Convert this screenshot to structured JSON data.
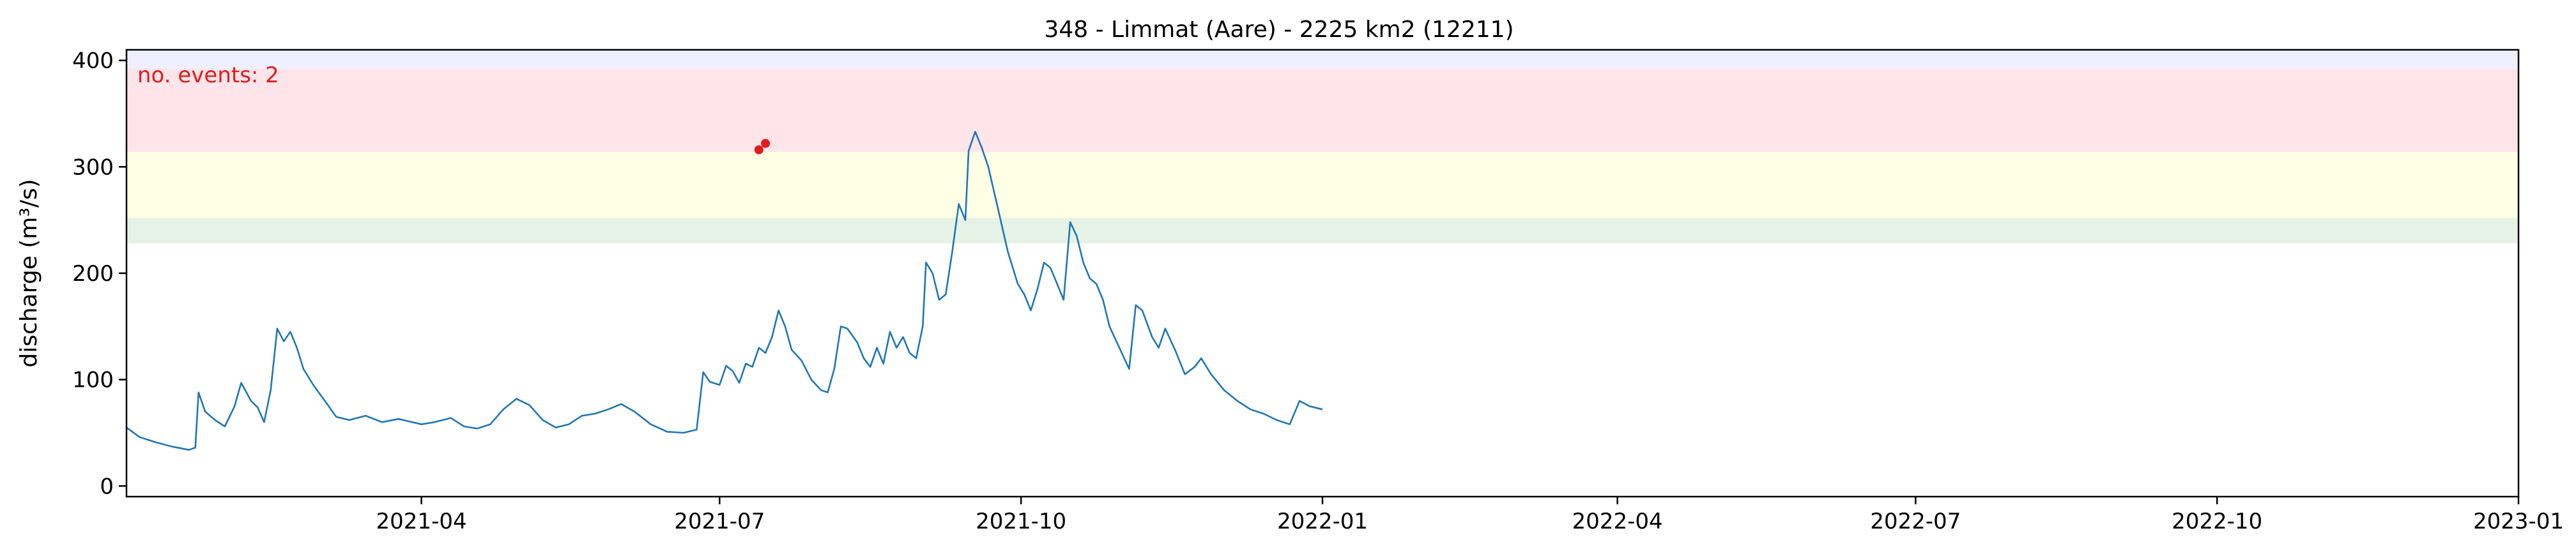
{
  "chart_data": {
    "type": "line",
    "title": "348 - Limmat (Aare) - 2225 km2 (12211)",
    "xlabel": "",
    "ylabel": "discharge (m³/s)",
    "xlim": [
      "2021-01-01",
      "2023-01-01"
    ],
    "ylim": [
      -10,
      410
    ],
    "x_ticks": [
      "2021-04",
      "2021-07",
      "2021-10",
      "2022-01",
      "2022-04",
      "2022-07",
      "2022-10",
      "2023-01"
    ],
    "y_ticks": [
      0,
      100,
      200,
      300,
      400
    ],
    "grid": false,
    "threshold_bands": [
      {
        "from": 228,
        "to": 252,
        "color": "#e5f2e5"
      },
      {
        "from": 252,
        "to": 314,
        "color": "#ffffe5"
      },
      {
        "from": 314,
        "to": 392,
        "color": "#ffe5e9"
      },
      {
        "from": 392,
        "to": 410,
        "color": "#efefff"
      }
    ],
    "annotation": {
      "text": "no. events: 2",
      "color": "#e41a1c",
      "placement": "top-left"
    },
    "events": [
      {
        "date": "2021-07-13",
        "value": 316,
        "color": "#e41a1c"
      },
      {
        "date": "2021-07-15",
        "value": 322,
        "color": "#e41a1c"
      }
    ],
    "series": [
      {
        "color": "#1f77b4",
        "points": [
          [
            "2021-01-01",
            55
          ],
          [
            "2021-01-05",
            46
          ],
          [
            "2021-01-10",
            41
          ],
          [
            "2021-01-15",
            37
          ],
          [
            "2021-01-20",
            34
          ],
          [
            "2021-01-22",
            36
          ],
          [
            "2021-01-23",
            88
          ],
          [
            "2021-01-25",
            70
          ],
          [
            "2021-01-28",
            62
          ],
          [
            "2021-01-31",
            56
          ],
          [
            "2021-02-03",
            75
          ],
          [
            "2021-02-05",
            97
          ],
          [
            "2021-02-08",
            80
          ],
          [
            "2021-02-10",
            74
          ],
          [
            "2021-02-12",
            60
          ],
          [
            "2021-02-14",
            90
          ],
          [
            "2021-02-16",
            148
          ],
          [
            "2021-02-18",
            136
          ],
          [
            "2021-02-20",
            145
          ],
          [
            "2021-02-22",
            130
          ],
          [
            "2021-02-24",
            110
          ],
          [
            "2021-02-27",
            95
          ],
          [
            "2021-03-03",
            78
          ],
          [
            "2021-03-06",
            65
          ],
          [
            "2021-03-10",
            62
          ],
          [
            "2021-03-15",
            66
          ],
          [
            "2021-03-20",
            60
          ],
          [
            "2021-03-25",
            63
          ],
          [
            "2021-04-01",
            58
          ],
          [
            "2021-04-05",
            60
          ],
          [
            "2021-04-10",
            64
          ],
          [
            "2021-04-14",
            56
          ],
          [
            "2021-04-18",
            54
          ],
          [
            "2021-04-22",
            58
          ],
          [
            "2021-04-26",
            72
          ],
          [
            "2021-04-30",
            82
          ],
          [
            "2021-05-04",
            76
          ],
          [
            "2021-05-08",
            62
          ],
          [
            "2021-05-12",
            55
          ],
          [
            "2021-05-16",
            58
          ],
          [
            "2021-05-20",
            66
          ],
          [
            "2021-05-24",
            68
          ],
          [
            "2021-05-28",
            72
          ],
          [
            "2021-06-01",
            77
          ],
          [
            "2021-06-05",
            70
          ],
          [
            "2021-06-10",
            58
          ],
          [
            "2021-06-15",
            51
          ],
          [
            "2021-06-20",
            50
          ],
          [
            "2021-06-24",
            53
          ],
          [
            "2021-06-26",
            107
          ],
          [
            "2021-06-28",
            98
          ],
          [
            "2021-07-01",
            95
          ],
          [
            "2021-07-03",
            113
          ],
          [
            "2021-07-05",
            108
          ],
          [
            "2021-07-07",
            97
          ],
          [
            "2021-07-09",
            115
          ],
          [
            "2021-07-11",
            112
          ],
          [
            "2021-07-13",
            130
          ],
          [
            "2021-07-15",
            125
          ],
          [
            "2021-07-17",
            140
          ],
          [
            "2021-07-19",
            165
          ],
          [
            "2021-07-21",
            150
          ],
          [
            "2021-07-23",
            128
          ],
          [
            "2021-07-26",
            118
          ],
          [
            "2021-07-29",
            100
          ],
          [
            "2021-08-01",
            90
          ],
          [
            "2021-08-03",
            88
          ],
          [
            "2021-08-05",
            110
          ],
          [
            "2021-08-07",
            150
          ],
          [
            "2021-08-09",
            148
          ],
          [
            "2021-08-12",
            135
          ],
          [
            "2021-08-14",
            120
          ],
          [
            "2021-08-16",
            112
          ],
          [
            "2021-08-18",
            130
          ],
          [
            "2021-08-20",
            115
          ],
          [
            "2021-08-22",
            145
          ],
          [
            "2021-08-24",
            130
          ],
          [
            "2021-08-26",
            140
          ],
          [
            "2021-08-28",
            125
          ],
          [
            "2021-08-30",
            120
          ],
          [
            "2021-09-01",
            150
          ],
          [
            "2021-09-02",
            210
          ],
          [
            "2021-09-04",
            200
          ],
          [
            "2021-09-06",
            175
          ],
          [
            "2021-09-08",
            180
          ],
          [
            "2021-09-10",
            220
          ],
          [
            "2021-09-12",
            265
          ],
          [
            "2021-09-14",
            250
          ],
          [
            "2021-09-15",
            315
          ],
          [
            "2021-09-17",
            333
          ],
          [
            "2021-09-19",
            318
          ],
          [
            "2021-09-21",
            300
          ],
          [
            "2021-09-24",
            260
          ],
          [
            "2021-09-27",
            220
          ],
          [
            "2021-09-30",
            190
          ],
          [
            "2021-10-02",
            180
          ],
          [
            "2021-10-04",
            165
          ],
          [
            "2021-10-06",
            185
          ],
          [
            "2021-10-08",
            210
          ],
          [
            "2021-10-10",
            205
          ],
          [
            "2021-10-12",
            190
          ],
          [
            "2021-10-14",
            175
          ],
          [
            "2021-10-16",
            248
          ],
          [
            "2021-10-18",
            235
          ],
          [
            "2021-10-20",
            210
          ],
          [
            "2021-10-22",
            195
          ],
          [
            "2021-10-24",
            190
          ],
          [
            "2021-10-26",
            175
          ],
          [
            "2021-10-28",
            150
          ],
          [
            "2021-10-31",
            130
          ],
          [
            "2021-11-03",
            110
          ],
          [
            "2021-11-05",
            170
          ],
          [
            "2021-11-07",
            165
          ],
          [
            "2021-11-10",
            140
          ],
          [
            "2021-11-12",
            130
          ],
          [
            "2021-11-14",
            148
          ],
          [
            "2021-11-17",
            128
          ],
          [
            "2021-11-20",
            105
          ],
          [
            "2021-11-23",
            112
          ],
          [
            "2021-11-25",
            120
          ],
          [
            "2021-11-28",
            105
          ],
          [
            "2021-12-02",
            90
          ],
          [
            "2021-12-06",
            80
          ],
          [
            "2021-12-10",
            72
          ],
          [
            "2021-12-14",
            68
          ],
          [
            "2021-12-18",
            62
          ],
          [
            "2021-12-22",
            58
          ],
          [
            "2021-12-25",
            80
          ],
          [
            "2021-12-28",
            75
          ],
          [
            "2022-01-01",
            72
          ]
        ]
      }
    ]
  }
}
